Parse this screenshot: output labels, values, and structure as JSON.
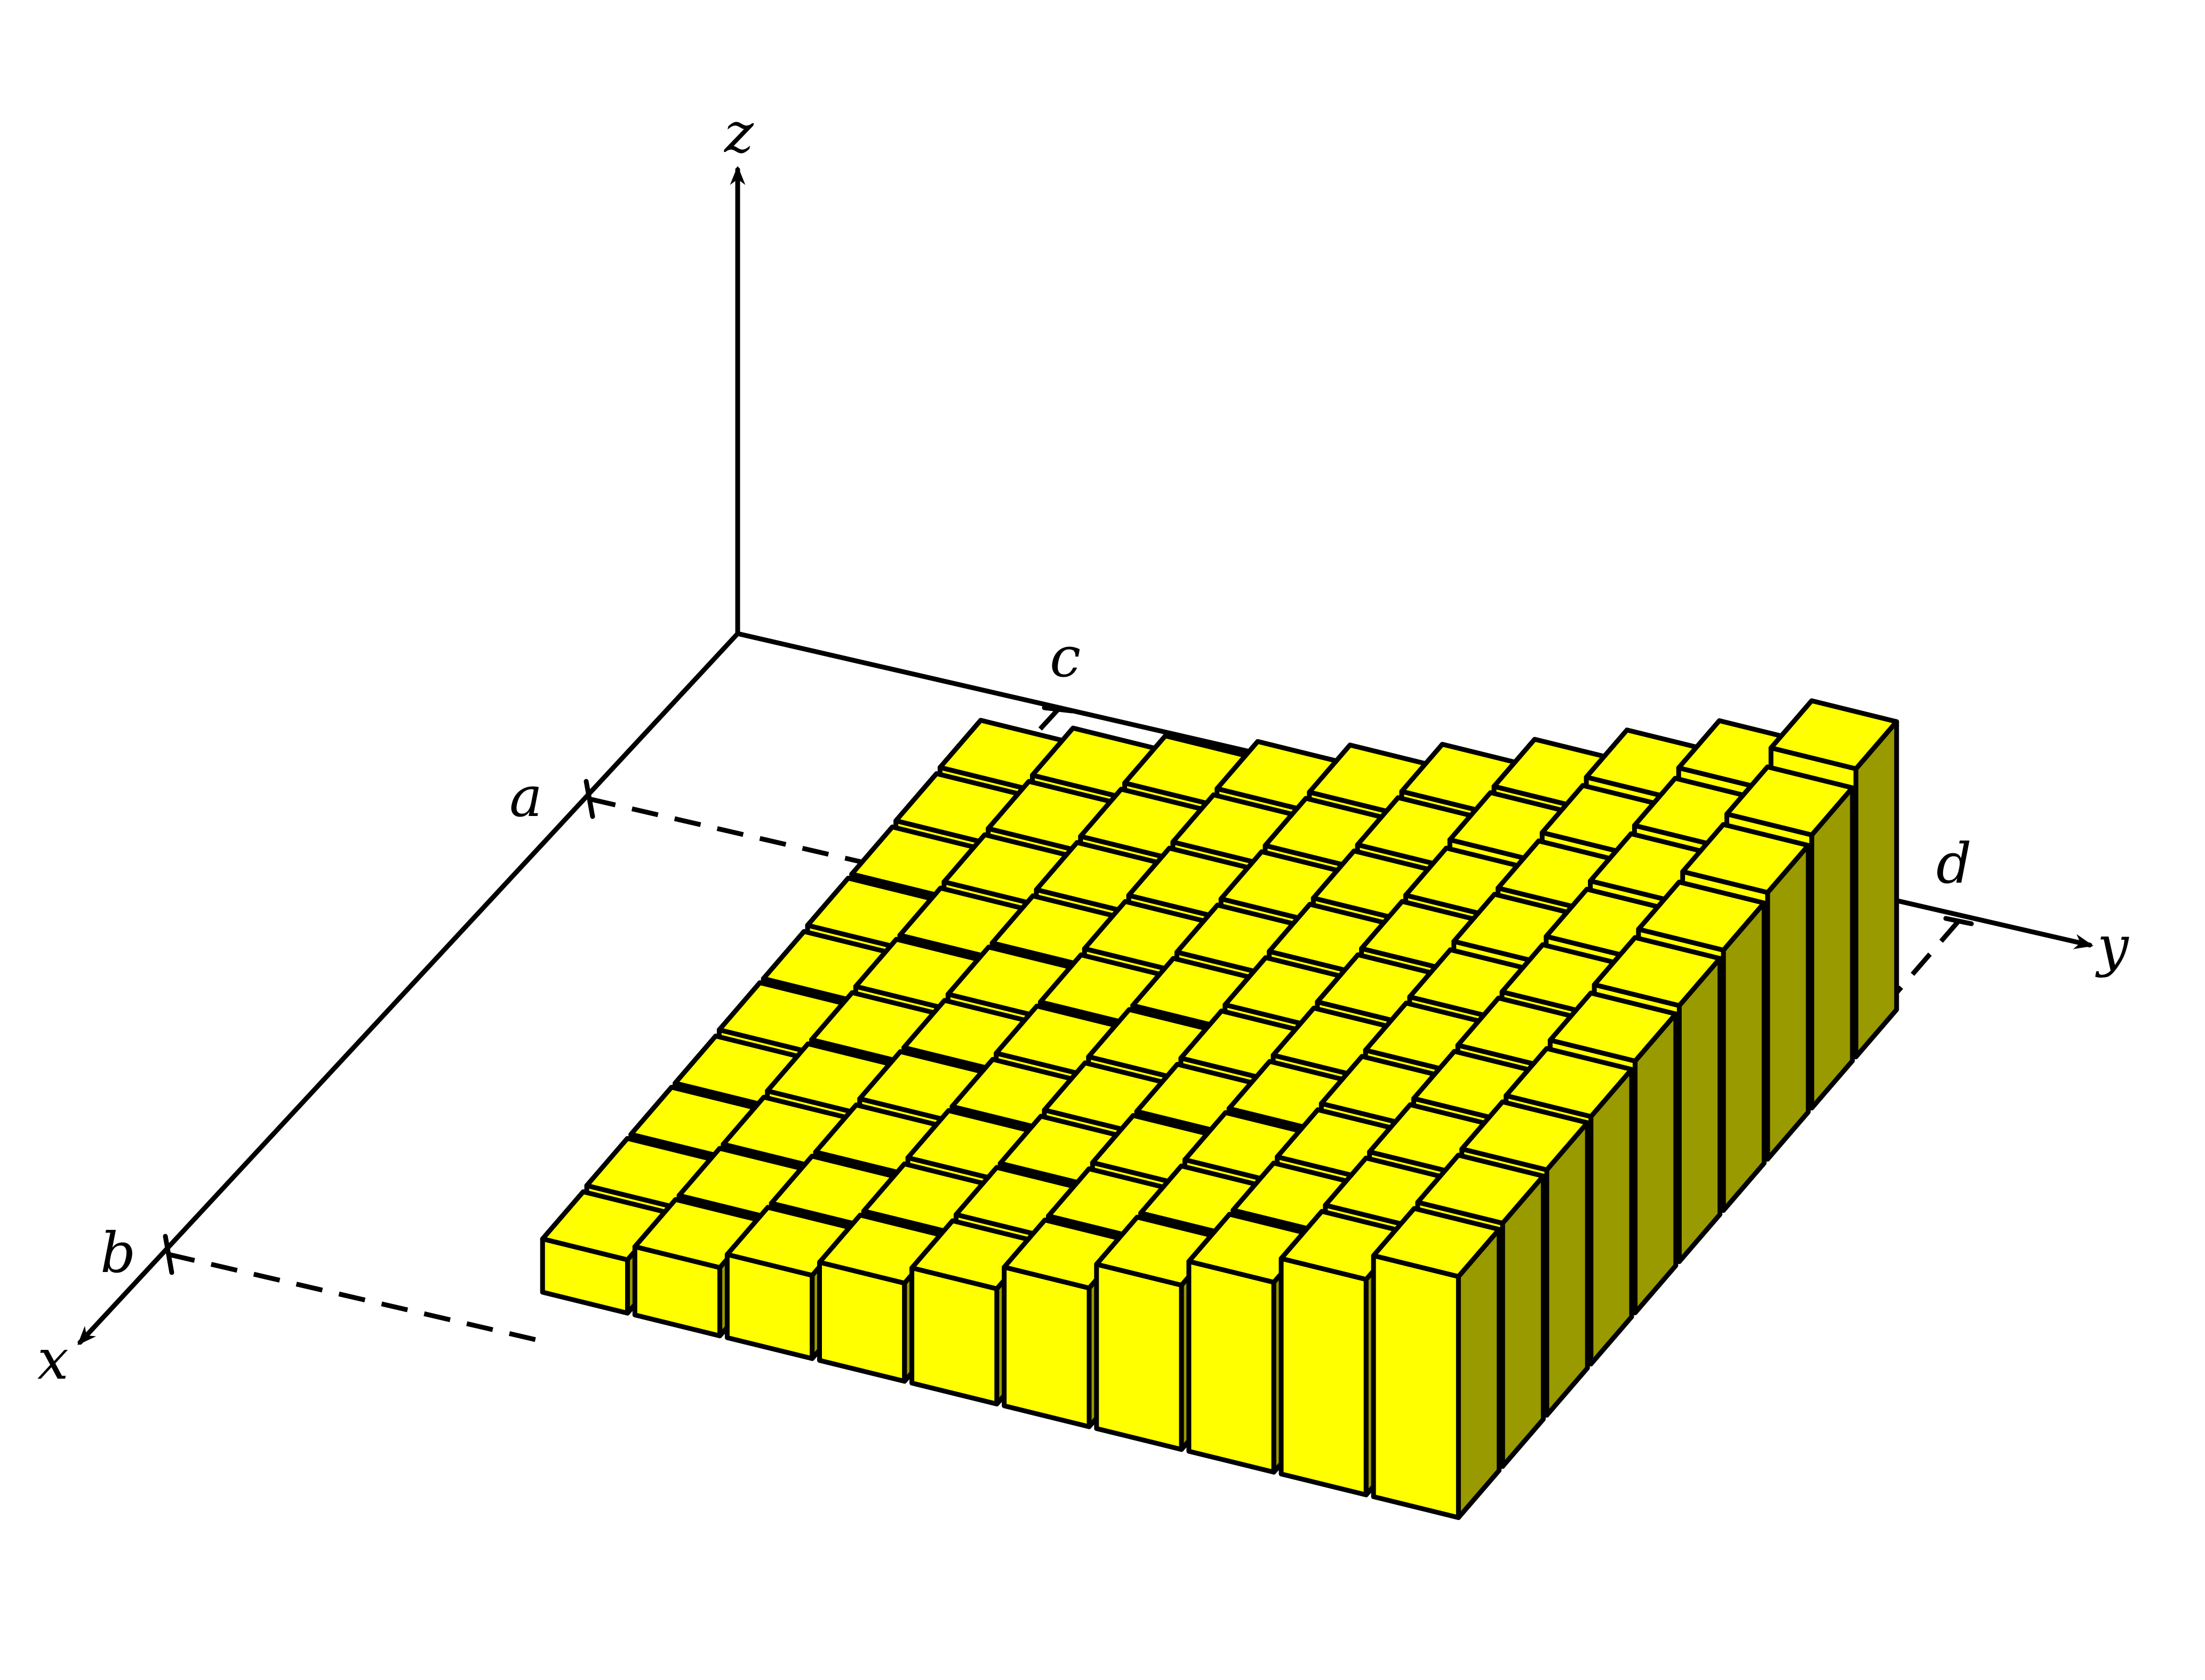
{
  "labels": {
    "axis_x": "x",
    "axis_y": "y",
    "axis_z": "z",
    "point_a": "a",
    "point_b": "b",
    "point_c": "c",
    "point_d": "d"
  },
  "colors": {
    "top": "#ffff00",
    "front": "#ffff00",
    "side": "#999900",
    "line": "#000000"
  },
  "grid": {
    "rows": 10,
    "cols": 10,
    "x_range": [
      "a",
      "b"
    ],
    "y_range": [
      "c",
      "d"
    ],
    "heights": [
      [
        0.3,
        0.37,
        0.44,
        0.52,
        0.61,
        0.72,
        0.85,
        1.0,
        1.15,
        1.35
      ],
      [
        0.29,
        0.36,
        0.43,
        0.51,
        0.6,
        0.71,
        0.84,
        0.98,
        1.12,
        1.28
      ],
      [
        0.28,
        0.35,
        0.42,
        0.5,
        0.59,
        0.7,
        0.82,
        0.96,
        1.1,
        1.25
      ],
      [
        0.28,
        0.34,
        0.41,
        0.49,
        0.58,
        0.69,
        0.81,
        0.95,
        1.08,
        1.22
      ],
      [
        0.27,
        0.34,
        0.41,
        0.48,
        0.57,
        0.68,
        0.8,
        0.93,
        1.06,
        1.2
      ],
      [
        0.27,
        0.33,
        0.4,
        0.48,
        0.57,
        0.67,
        0.79,
        0.92,
        1.05,
        1.18
      ],
      [
        0.26,
        0.33,
        0.4,
        0.47,
        0.56,
        0.66,
        0.78,
        0.91,
        1.04,
        1.16
      ],
      [
        0.26,
        0.32,
        0.39,
        0.47,
        0.55,
        0.66,
        0.78,
        0.9,
        1.03,
        1.15
      ],
      [
        0.26,
        0.32,
        0.39,
        0.46,
        0.55,
        0.65,
        0.77,
        0.89,
        1.02,
        1.14
      ],
      [
        0.25,
        0.32,
        0.39,
        0.46,
        0.54,
        0.65,
        0.77,
        0.89,
        1.01,
        1.13
      ]
    ]
  }
}
